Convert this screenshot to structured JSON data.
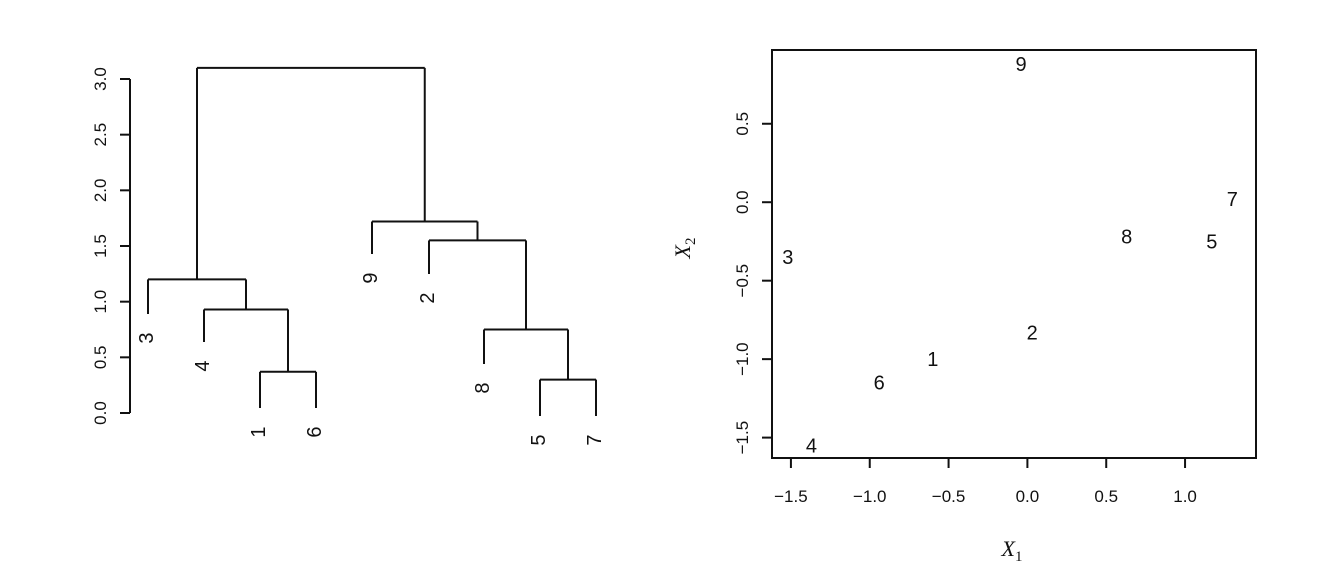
{
  "chart_data": [
    {
      "type": "dendrogram",
      "ylim": [
        0,
        3.0
      ],
      "y_ticks": [
        "0.0",
        "0.5",
        "1.0",
        "1.5",
        "2.0",
        "2.5",
        "3.0"
      ],
      "y_tick_values": [
        0,
        0.5,
        1.0,
        1.5,
        2.0,
        2.5,
        3.0
      ],
      "leaf_order": [
        "3",
        "4",
        "1",
        "6",
        "9",
        "2",
        "8",
        "5",
        "7"
      ],
      "merges": [
        {
          "left": "1",
          "right": "6",
          "height": 0.37
        },
        {
          "left": "5",
          "right": "7",
          "height": 0.3
        },
        {
          "left": "4",
          "right": "(1,6)",
          "height": 0.93
        },
        {
          "left": "8",
          "right": "(5,7)",
          "height": 0.75
        },
        {
          "left": "3",
          "right": "(4,1,6)",
          "height": 1.2
        },
        {
          "left": "2",
          "right": "(8,5,7)",
          "height": 1.55
        },
        {
          "left": "9",
          "right": "(2,8,5,7)",
          "height": 1.72
        },
        {
          "left": "(3,4,1,6)",
          "right": "(9,2,8,5,7)",
          "height": 3.1
        }
      ],
      "grid": false
    },
    {
      "type": "scatter",
      "xlabel": "X",
      "xlabel_sub": "1",
      "ylabel": "X",
      "ylabel_sub": "2",
      "x_ticks": [
        "−1.5",
        "−1.0",
        "−0.5",
        "0.0",
        "0.5",
        "1.0"
      ],
      "x_tick_values": [
        -1.5,
        -1.0,
        -0.5,
        0.0,
        0.5,
        1.0
      ],
      "y_ticks": [
        "−1.5",
        "−1.0",
        "−0.5",
        "0.0",
        "0.5"
      ],
      "y_tick_values": [
        -1.5,
        -1.0,
        -0.5,
        0.0,
        0.5
      ],
      "xlim": [
        -1.62,
        1.45
      ],
      "ylim": [
        -1.63,
        0.97
      ],
      "points": [
        {
          "label": "1",
          "x": -0.6,
          "y": -1.0
        },
        {
          "label": "2",
          "x": 0.03,
          "y": -0.83
        },
        {
          "label": "3",
          "x": -1.52,
          "y": -0.35
        },
        {
          "label": "4",
          "x": -1.37,
          "y": -1.55
        },
        {
          "label": "5",
          "x": 1.17,
          "y": -0.25
        },
        {
          "label": "6",
          "x": -0.94,
          "y": -1.15
        },
        {
          "label": "7",
          "x": 1.3,
          "y": 0.02
        },
        {
          "label": "8",
          "x": 0.63,
          "y": -0.22
        },
        {
          "label": "9",
          "x": -0.04,
          "y": 0.88
        }
      ],
      "grid": false
    }
  ]
}
